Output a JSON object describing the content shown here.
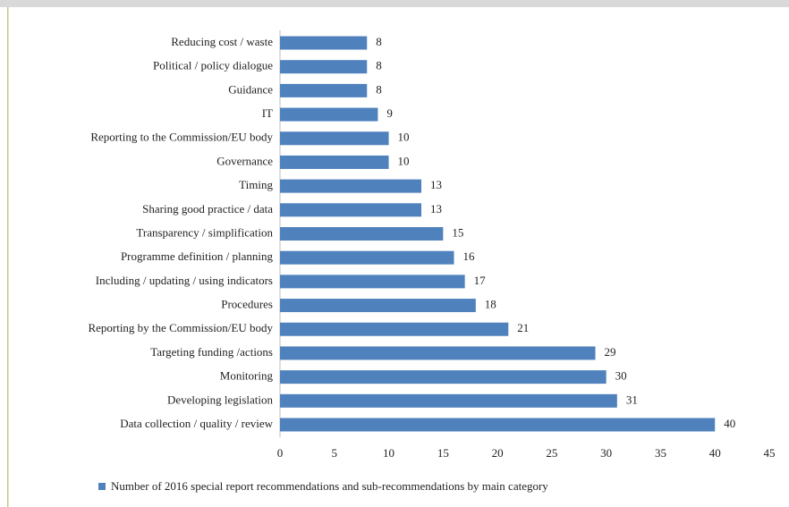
{
  "chart_data": {
    "type": "bar",
    "orientation": "horizontal",
    "categories": [
      "Reducing cost / waste",
      "Political / policy dialogue",
      "Guidance",
      "IT",
      "Reporting to the Commission/EU body",
      "Governance",
      "Timing",
      "Sharing good practice / data",
      "Transparency / simplification",
      "Programme definition  / planning",
      "Including / updating / using indicators",
      "Procedures",
      "Reporting by the Commission/EU body",
      "Targeting funding /actions",
      "Monitoring",
      "Developing legislation",
      "Data collection / quality / review"
    ],
    "series": [
      {
        "name": "Number of 2016 special report recommendations and sub-recommendations by main category",
        "color": "#4f81bd",
        "values": [
          8,
          8,
          8,
          9,
          10,
          10,
          13,
          13,
          15,
          16,
          17,
          18,
          21,
          29,
          30,
          31,
          40
        ]
      }
    ],
    "xlim": [
      0,
      45
    ],
    "xticks": [
      0,
      5,
      10,
      15,
      20,
      25,
      30,
      35,
      40,
      45
    ],
    "grid": false,
    "legend": "bottom"
  }
}
